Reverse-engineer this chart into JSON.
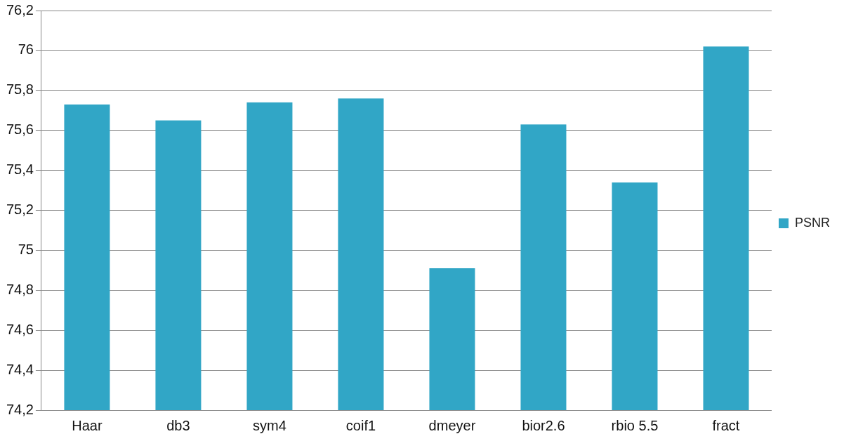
{
  "chart_data": {
    "type": "bar",
    "categories": [
      "Haar",
      "db3",
      "sym4",
      "coif1",
      "dmeyer",
      "bior2.6",
      "rbio 5.5",
      "fract"
    ],
    "series": [
      {
        "name": "PSNR",
        "color": "#31a6c6",
        "values": [
          75.73,
          75.65,
          75.74,
          75.76,
          74.91,
          75.63,
          75.34,
          76.02
        ]
      }
    ],
    "ylim": [
      74.2,
      76.2
    ],
    "yticks": [
      {
        "value": 74.2,
        "label": "74,2"
      },
      {
        "value": 74.4,
        "label": "74,4"
      },
      {
        "value": 74.6,
        "label": "74,6"
      },
      {
        "value": 74.8,
        "label": "74,8"
      },
      75,
      {
        "value": 75.2,
        "label": "75,2"
      },
      {
        "value": 75.4,
        "label": "75,4"
      },
      {
        "value": 75.6,
        "label": "75,6"
      },
      {
        "value": 75.8,
        "label": "75,8"
      },
      76,
      {
        "value": 76.2,
        "label": "76,2"
      }
    ],
    "grid": "y",
    "legend": "right"
  }
}
